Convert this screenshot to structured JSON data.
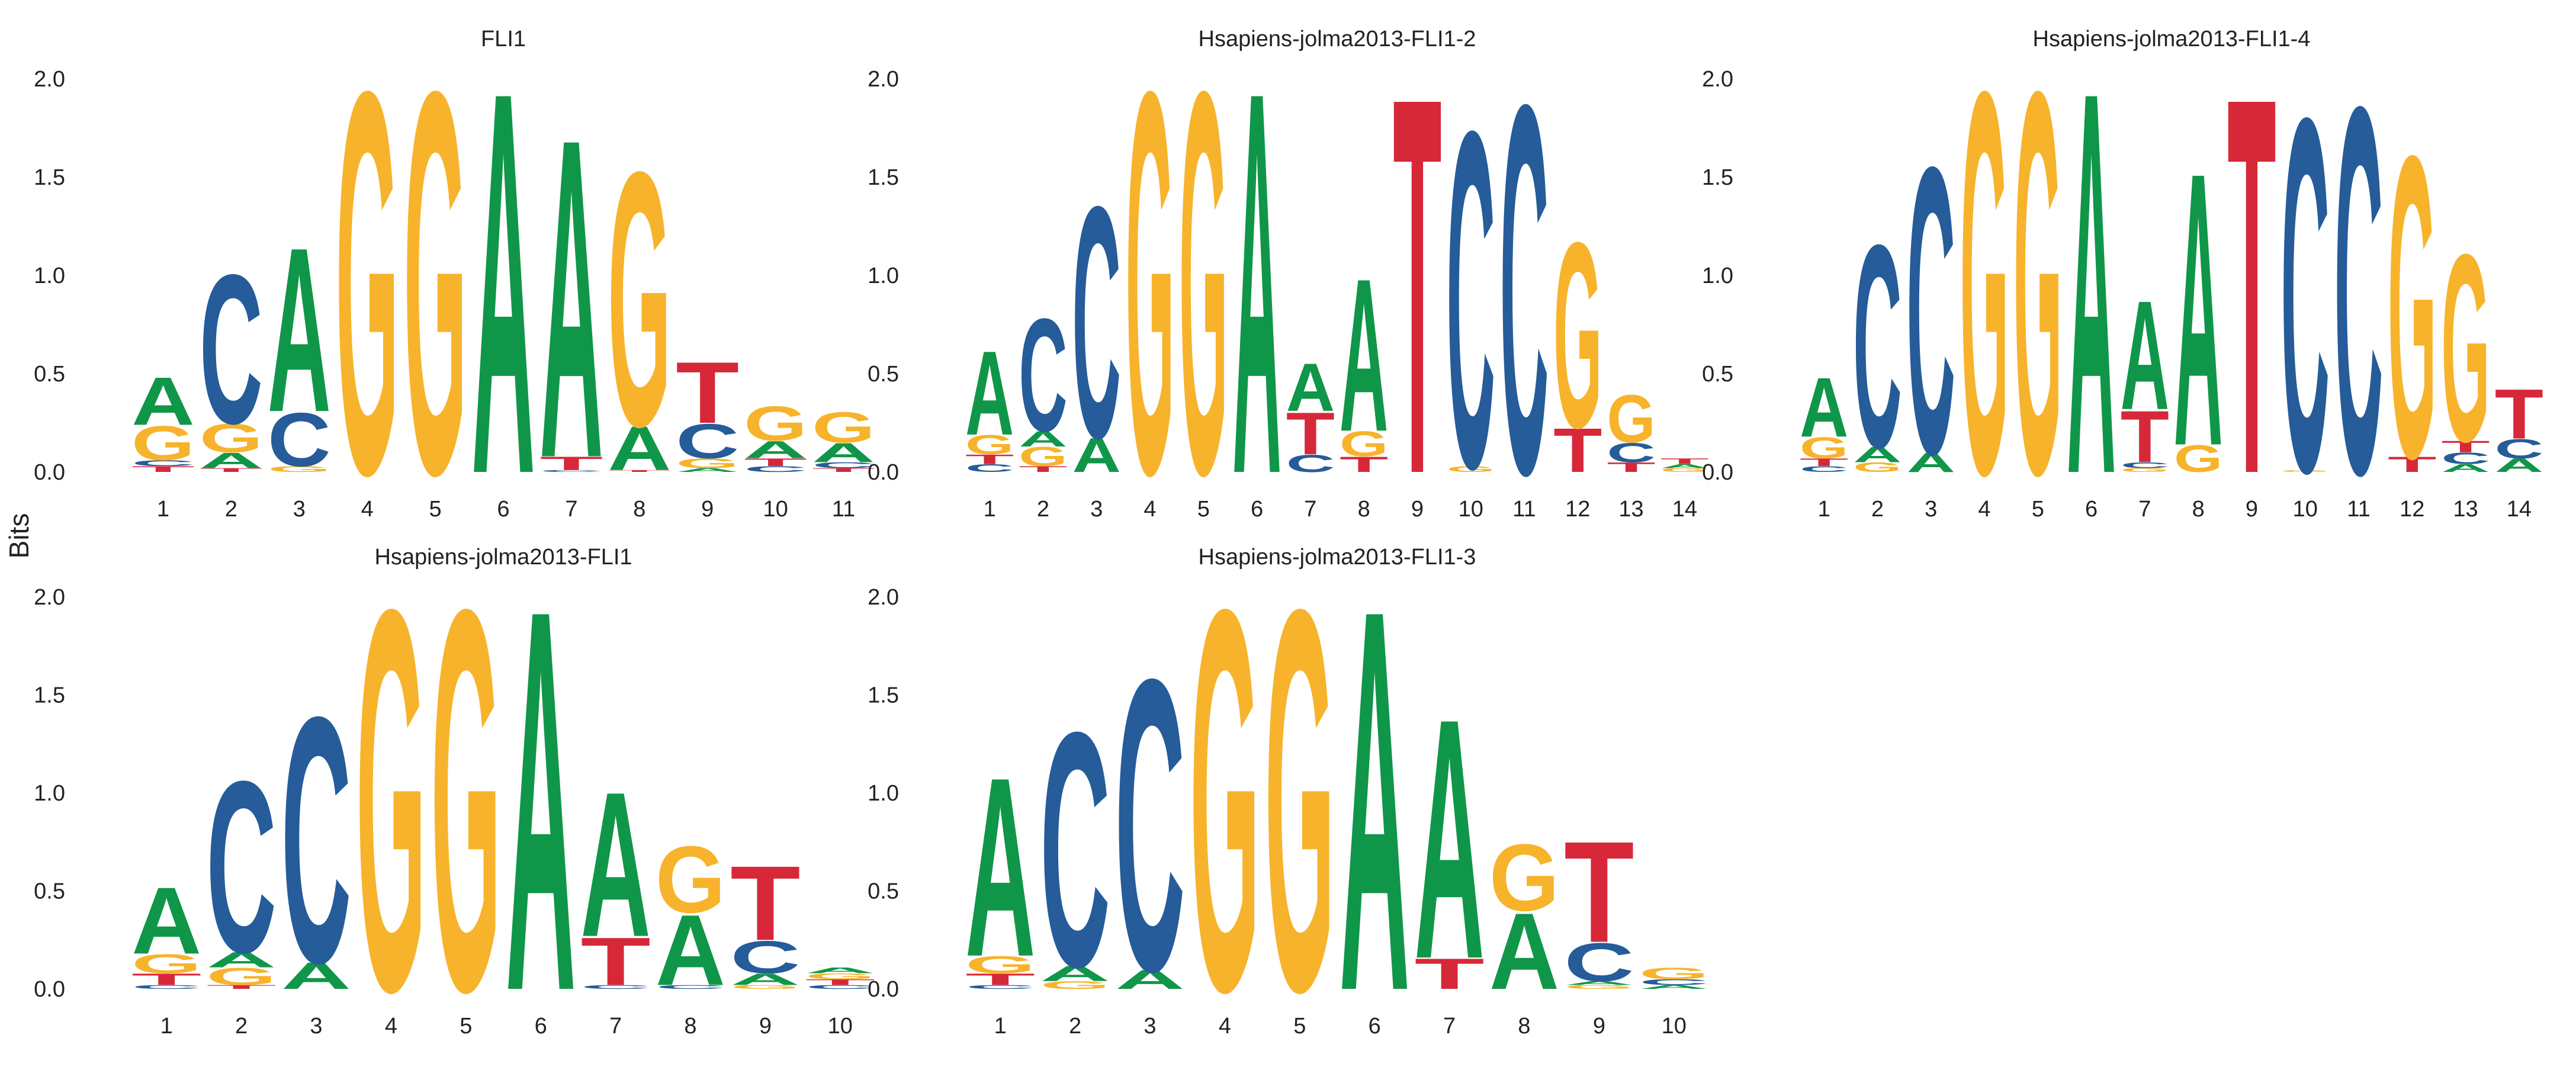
{
  "ylabel": "Bits",
  "colors": {
    "A": "#109648",
    "C": "#255C99",
    "G": "#F7B32B",
    "T": "#D62839"
  },
  "chart_data": [
    {
      "type": "sequence-logo",
      "title": "FLI1",
      "ylabel": "Bits",
      "ylim": [
        0,
        2.0
      ],
      "yticks": [
        "0.0",
        "0.5",
        "1.0",
        "1.5",
        "2.0"
      ],
      "positions": [
        "1",
        "2",
        "3",
        "4",
        "5",
        "6",
        "7",
        "8",
        "9",
        "10",
        "11"
      ],
      "stacks": [
        [
          [
            "T",
            0.03
          ],
          [
            "C",
            0.03
          ],
          [
            "G",
            0.18
          ],
          [
            "A",
            0.25
          ]
        ],
        [
          [
            "T",
            0.02
          ],
          [
            "A",
            0.08
          ],
          [
            "G",
            0.15
          ],
          [
            "C",
            0.78
          ]
        ],
        [
          [
            "G",
            0.03
          ],
          [
            "C",
            0.28
          ],
          [
            "A",
            0.86
          ]
        ],
        [
          [
            "G",
            2.0
          ]
        ],
        [
          [
            "G",
            2.0
          ]
        ],
        [
          [
            "A",
            2.0
          ]
        ],
        [
          [
            "C",
            0.01
          ],
          [
            "T",
            0.07
          ],
          [
            "A",
            1.67
          ]
        ],
        [
          [
            "T",
            0.01
          ],
          [
            "A",
            0.23
          ],
          [
            "G",
            1.33
          ]
        ],
        [
          [
            "A",
            0.02
          ],
          [
            "G",
            0.05
          ],
          [
            "C",
            0.18
          ],
          [
            "T",
            0.32
          ]
        ],
        [
          [
            "C",
            0.03
          ],
          [
            "T",
            0.04
          ],
          [
            "A",
            0.09
          ],
          [
            "G",
            0.18
          ]
        ],
        [
          [
            "T",
            0.02
          ],
          [
            "C",
            0.03
          ],
          [
            "A",
            0.1
          ],
          [
            "G",
            0.16
          ]
        ]
      ]
    },
    {
      "type": "sequence-logo",
      "title": "Hsapiens-jolma2013-FLI1-2",
      "ylabel": "Bits",
      "ylim": [
        0,
        2.0
      ],
      "yticks": [
        "0.0",
        "0.5",
        "1.0",
        "1.5",
        "2.0"
      ],
      "positions": [
        "1",
        "2",
        "3",
        "4",
        "5",
        "6",
        "7",
        "8",
        "9",
        "10",
        "11",
        "12",
        "13",
        "14"
      ],
      "stacks": [
        [
          [
            "C",
            0.04
          ],
          [
            "T",
            0.05
          ],
          [
            "G",
            0.1
          ],
          [
            "A",
            0.44
          ]
        ],
        [
          [
            "T",
            0.03
          ],
          [
            "G",
            0.1
          ],
          [
            "A",
            0.08
          ],
          [
            "C",
            0.59
          ]
        ],
        [
          [
            "A",
            0.18
          ],
          [
            "C",
            1.21
          ]
        ],
        [
          [
            "G",
            2.0
          ]
        ],
        [
          [
            "G",
            2.0
          ]
        ],
        [
          [
            "A",
            2.0
          ]
        ],
        [
          [
            "C",
            0.09
          ],
          [
            "T",
            0.22
          ],
          [
            "A",
            0.25
          ]
        ],
        [
          [
            "T",
            0.08
          ],
          [
            "G",
            0.13
          ],
          [
            "A",
            0.8
          ]
        ],
        [
          [
            "T",
            1.97
          ]
        ],
        [
          [
            "G",
            0.03
          ],
          [
            "C",
            1.76
          ]
        ],
        [
          [
            "C",
            1.93
          ]
        ],
        [
          [
            "T",
            0.23
          ],
          [
            "G",
            0.97
          ]
        ],
        [
          [
            "T",
            0.05
          ],
          [
            "C",
            0.1
          ],
          [
            "G",
            0.25
          ]
        ],
        [
          [
            "G",
            0.02
          ],
          [
            "A",
            0.02
          ],
          [
            "T",
            0.03
          ]
        ]
      ]
    },
    {
      "type": "sequence-logo",
      "title": "Hsapiens-jolma2013-FLI1-4",
      "ylabel": "Bits",
      "ylim": [
        0,
        2.0
      ],
      "yticks": [
        "0.0",
        "0.5",
        "1.0",
        "1.5",
        "2.0"
      ],
      "positions": [
        "1",
        "2",
        "3",
        "4",
        "5",
        "6",
        "7",
        "8",
        "9",
        "10",
        "11",
        "12",
        "13",
        "14"
      ],
      "stacks": [
        [
          [
            "C",
            0.03
          ],
          [
            "T",
            0.04
          ],
          [
            "G",
            0.11
          ],
          [
            "A",
            0.31
          ]
        ],
        [
          [
            "G",
            0.05
          ],
          [
            "A",
            0.08
          ],
          [
            "C",
            1.06
          ]
        ],
        [
          [
            "A",
            0.1
          ],
          [
            "C",
            1.5
          ]
        ],
        [
          [
            "G",
            2.0
          ]
        ],
        [
          [
            "G",
            2.0
          ]
        ],
        [
          [
            "A",
            2.0
          ]
        ],
        [
          [
            "G",
            0.02
          ],
          [
            "C",
            0.03
          ],
          [
            "T",
            0.27
          ],
          [
            "A",
            0.57
          ]
        ],
        [
          [
            "G",
            0.14
          ],
          [
            "A",
            1.43
          ]
        ],
        [
          [
            "T",
            1.97
          ]
        ],
        [
          [
            "G",
            0.01
          ],
          [
            "C",
            1.85
          ]
        ],
        [
          [
            "C",
            1.92
          ]
        ],
        [
          [
            "T",
            0.08
          ],
          [
            "G",
            1.58
          ]
        ],
        [
          [
            "A",
            0.04
          ],
          [
            "C",
            0.06
          ],
          [
            "T",
            0.06
          ],
          [
            "G",
            0.98
          ]
        ],
        [
          [
            "A",
            0.07
          ],
          [
            "C",
            0.1
          ],
          [
            "T",
            0.26
          ]
        ]
      ]
    },
    {
      "type": "sequence-logo",
      "title": "Hsapiens-jolma2013-FLI1",
      "ylabel": "Bits",
      "ylim": [
        0,
        2.0
      ],
      "yticks": [
        "0.0",
        "0.5",
        "1.0",
        "1.5",
        "2.0"
      ],
      "positions": [
        "1",
        "2",
        "3",
        "4",
        "5",
        "6",
        "7",
        "8",
        "9",
        "10"
      ],
      "stacks": [
        [
          [
            "C",
            0.02
          ],
          [
            "T",
            0.06
          ],
          [
            "G",
            0.1
          ],
          [
            "A",
            0.35
          ]
        ],
        [
          [
            "T",
            0.02
          ],
          [
            "G",
            0.09
          ],
          [
            "A",
            0.08
          ],
          [
            "C",
            0.9
          ]
        ],
        [
          [
            "A",
            0.14
          ],
          [
            "C",
            1.29
          ]
        ],
        [
          [
            "G",
            2.0
          ]
        ],
        [
          [
            "G",
            2.0
          ]
        ],
        [
          [
            "A",
            2.0
          ]
        ],
        [
          [
            "C",
            0.02
          ],
          [
            "T",
            0.25
          ],
          [
            "A",
            0.76
          ]
        ],
        [
          [
            "C",
            0.02
          ],
          [
            "A",
            0.37
          ],
          [
            "G",
            0.35
          ]
        ],
        [
          [
            "G",
            0.02
          ],
          [
            "A",
            0.06
          ],
          [
            "C",
            0.17
          ],
          [
            "T",
            0.39
          ]
        ],
        [
          [
            "C",
            0.02
          ],
          [
            "T",
            0.03
          ],
          [
            "G",
            0.03
          ],
          [
            "A",
            0.03
          ]
        ]
      ]
    },
    {
      "type": "sequence-logo",
      "title": "Hsapiens-jolma2013-FLI1-3",
      "ylabel": "Bits",
      "ylim": [
        0,
        2.0
      ],
      "yticks": [
        "0.0",
        "0.5",
        "1.0",
        "1.5",
        "2.0"
      ],
      "positions": [
        "1",
        "2",
        "3",
        "4",
        "5",
        "6",
        "7",
        "8",
        "9",
        "10"
      ],
      "stacks": [
        [
          [
            "C",
            0.02
          ],
          [
            "T",
            0.06
          ],
          [
            "G",
            0.09
          ],
          [
            "A",
            0.94
          ]
        ],
        [
          [
            "G",
            0.04
          ],
          [
            "A",
            0.08
          ],
          [
            "C",
            1.23
          ]
        ],
        [
          [
            "A",
            0.1
          ],
          [
            "C",
            1.53
          ]
        ],
        [
          [
            "G",
            2.0
          ]
        ],
        [
          [
            "G",
            2.0
          ]
        ],
        [
          [
            "A",
            2.0
          ]
        ],
        [
          [
            "T",
            0.16
          ],
          [
            "A",
            1.26
          ]
        ],
        [
          [
            "A",
            0.4
          ],
          [
            "G",
            0.35
          ]
        ],
        [
          [
            "G",
            0.02
          ],
          [
            "A",
            0.02
          ],
          [
            "C",
            0.2
          ],
          [
            "T",
            0.53
          ]
        ],
        [
          [
            "A",
            0.02
          ],
          [
            "C",
            0.03
          ],
          [
            "G",
            0.06
          ]
        ]
      ]
    }
  ]
}
